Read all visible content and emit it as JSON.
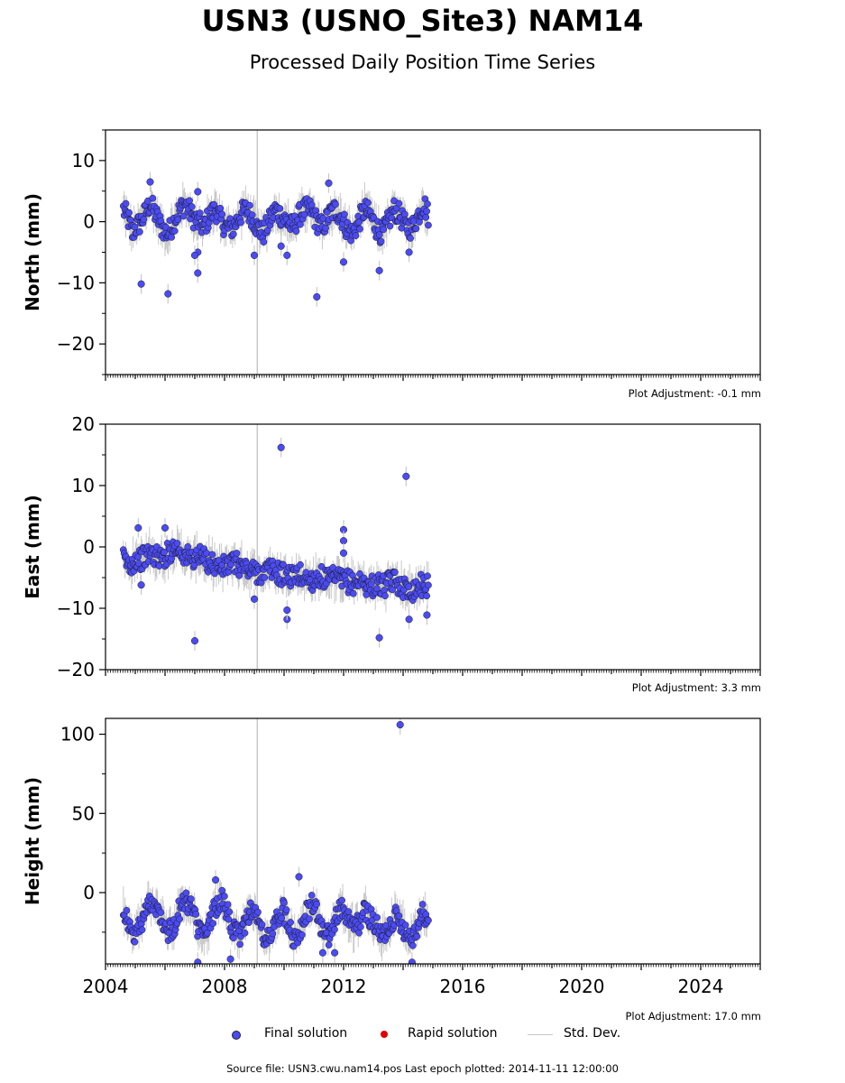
{
  "title": "USN3 (USNO_Site3) NAM14",
  "subtitle": "Processed Daily Position Time Series",
  "legend": {
    "final": "Final solution",
    "rapid": "Rapid solution",
    "std": "Std. Dev."
  },
  "footer": "Source file: USN3.cwu.nam14.pos  Last epoch plotted: 2014-11-11 12:00:00",
  "colors": {
    "final": "#4b4bf5",
    "rapid": "#e00000",
    "std": "#c8c8c8",
    "vline": "#c8c8c8"
  },
  "chart_data": [
    {
      "type": "scatter",
      "ylabel": "North (mm)",
      "adjustment": "Plot Adjustment: -0.1 mm",
      "xlim": [
        2004.0,
        2026.0
      ],
      "ylim": [
        -25,
        15
      ],
      "yticks": [
        10,
        0,
        -10,
        -20
      ],
      "ytick_labels": [
        "10",
        "0",
        "−10",
        "−20"
      ],
      "series": [
        {
          "x": [
            2004.6,
            2004.7,
            2004.8,
            2004.9,
            2005.0,
            2005.2,
            2005.4,
            2005.5,
            2005.7,
            2005.9,
            2006.1,
            2006.3,
            2006.5,
            2006.7,
            2006.9,
            2007.1,
            2007.3,
            2007.5,
            2007.7,
            2007.9,
            2008.1,
            2008.3,
            2008.5,
            2008.7,
            2008.9,
            2009.1,
            2009.3,
            2009.5,
            2009.7,
            2009.9,
            2010.1,
            2010.3,
            2010.5,
            2010.7,
            2010.9,
            2011.1,
            2011.3,
            2011.5,
            2011.7,
            2011.9,
            2012.1,
            2012.3,
            2012.5,
            2012.7,
            2012.9,
            2013.1,
            2013.3,
            2013.5,
            2013.7,
            2013.9,
            2014.1,
            2014.3,
            2014.5,
            2014.7,
            2014.85
          ],
          "y": [
            2,
            1,
            0,
            -2,
            -1,
            0,
            2,
            3,
            1,
            -1,
            -2,
            0,
            2,
            3,
            1,
            0,
            -1,
            1,
            2,
            0,
            -1,
            -1,
            1,
            2,
            1,
            -1,
            -2,
            0,
            2,
            1,
            0,
            -1,
            1,
            2,
            2,
            0,
            -1,
            1,
            2,
            1,
            -1,
            -2,
            0,
            2,
            1,
            -1,
            -2,
            0,
            2,
            1,
            -1,
            -1,
            1,
            3,
            1
          ],
          "outliers_x": [
            2005.2,
            2006.1,
            2007.1,
            2007.1,
            2007.0,
            2009.0,
            2009.9,
            2010.1,
            2011.1,
            2011.5,
            2012.0,
            2013.2,
            2014.2,
            2005.5,
            2007.1
          ],
          "outliers_y": [
            -10.2,
            -11.8,
            -8.4,
            -5.0,
            -5.5,
            -5.5,
            -4.0,
            -5.5,
            -12.3,
            6.3,
            -6.6,
            -8.0,
            -5.0,
            6.5,
            4.9
          ]
        }
      ]
    },
    {
      "type": "scatter",
      "ylabel": "East (mm)",
      "adjustment": "Plot Adjustment: 3.3 mm",
      "xlim": [
        2004.0,
        2026.0
      ],
      "ylim": [
        -20,
        20
      ],
      "yticks": [
        20,
        10,
        0,
        -10,
        -20
      ],
      "ytick_labels": [
        "20",
        "10",
        "0",
        "−10",
        "−20"
      ],
      "series": [
        {
          "x": [
            2004.6,
            2004.7,
            2004.8,
            2004.9,
            2005.0,
            2005.2,
            2005.4,
            2005.5,
            2005.7,
            2005.9,
            2006.1,
            2006.3,
            2006.5,
            2006.7,
            2006.9,
            2007.1,
            2007.3,
            2007.5,
            2007.7,
            2007.9,
            2008.1,
            2008.3,
            2008.5,
            2008.7,
            2008.9,
            2009.1,
            2009.3,
            2009.5,
            2009.7,
            2009.9,
            2010.1,
            2010.3,
            2010.5,
            2010.7,
            2010.9,
            2011.1,
            2011.3,
            2011.5,
            2011.7,
            2011.9,
            2012.1,
            2012.3,
            2012.5,
            2012.7,
            2012.9,
            2013.1,
            2013.3,
            2013.5,
            2013.7,
            2013.9,
            2014.1,
            2014.3,
            2014.5,
            2014.7,
            2014.85
          ],
          "y": [
            -2,
            -2.5,
            -3,
            -2.5,
            -2,
            -2,
            -1.5,
            -1,
            -1.5,
            -2,
            -1,
            0,
            -0.5,
            -1.5,
            -2,
            -1.5,
            -2,
            -2.5,
            -3,
            -3.5,
            -3,
            -2.5,
            -3,
            -3.5,
            -4,
            -4,
            -4.5,
            -3.5,
            -4,
            -4.5,
            -4.5,
            -5,
            -4.5,
            -5,
            -5.5,
            -5,
            -5,
            -5.5,
            -5,
            -5.5,
            -5.5,
            -6,
            -5.5,
            -6,
            -6.5,
            -6,
            -6.5,
            -6,
            -5.5,
            -6,
            -7,
            -7,
            -6.5,
            -6,
            -6.5
          ],
          "outliers_x": [
            2009.9,
            2014.1,
            2007.0,
            2005.1,
            2006.0,
            2013.2,
            2014.2,
            2014.8,
            2012.0,
            2012.0,
            2010.1,
            2010.1,
            2005.2,
            2012.0,
            2009.0
          ],
          "outliers_y": [
            16.2,
            11.5,
            -15.3,
            3.1,
            3.1,
            -14.8,
            -11.8,
            -11.1,
            2.8,
            1.0,
            -11.8,
            -10.3,
            -6.2,
            -1.0,
            -8.5
          ]
        }
      ]
    },
    {
      "type": "scatter",
      "ylabel": "Height (mm)",
      "adjustment": "Plot Adjustment: 17.0 mm",
      "xlim": [
        2004.0,
        2026.0
      ],
      "ylim": [
        -45,
        110
      ],
      "yticks": [
        100,
        50,
        0
      ],
      "ytick_labels": [
        "100",
        "50",
        "0"
      ],
      "xticks": [
        2004,
        2008,
        2012,
        2016,
        2020,
        2024
      ],
      "xtick_labels": [
        "2004",
        "2008",
        "2012",
        "2016",
        "2020",
        "2024"
      ],
      "series": [
        {
          "x": [
            2004.6,
            2004.7,
            2004.8,
            2004.9,
            2005.0,
            2005.2,
            2005.4,
            2005.5,
            2005.7,
            2005.9,
            2006.1,
            2006.3,
            2006.5,
            2006.7,
            2006.9,
            2007.1,
            2007.3,
            2007.5,
            2007.7,
            2007.9,
            2008.1,
            2008.3,
            2008.5,
            2008.7,
            2008.9,
            2009.1,
            2009.3,
            2009.5,
            2009.7,
            2009.9,
            2010.1,
            2010.3,
            2010.5,
            2010.7,
            2010.9,
            2011.1,
            2011.3,
            2011.5,
            2011.7,
            2011.9,
            2012.1,
            2012.3,
            2012.5,
            2012.7,
            2012.9,
            2013.1,
            2013.3,
            2013.5,
            2013.7,
            2013.9,
            2014.1,
            2014.3,
            2014.5,
            2014.7,
            2014.85
          ],
          "y": [
            -10,
            -15,
            -22,
            -28,
            -25,
            -20,
            -10,
            -5,
            -8,
            -15,
            -25,
            -22,
            -10,
            -5,
            -10,
            -22,
            -28,
            -20,
            -8,
            -5,
            -12,
            -25,
            -28,
            -18,
            -10,
            -15,
            -28,
            -30,
            -20,
            -10,
            -15,
            -28,
            -25,
            -15,
            -8,
            -12,
            -25,
            -28,
            -18,
            -10,
            -15,
            -22,
            -20,
            -12,
            -15,
            -22,
            -28,
            -22,
            -15,
            -18,
            -25,
            -28,
            -20,
            -12,
            -22
          ],
          "outliers_x": [
            2013.9,
            2008.2,
            2011.3,
            2010.5,
            2014.3,
            2007.1,
            2011.7,
            2007.7
          ],
          "outliers_y": [
            106,
            -42,
            -38,
            10,
            -44,
            -44,
            -38,
            8
          ]
        }
      ]
    }
  ]
}
